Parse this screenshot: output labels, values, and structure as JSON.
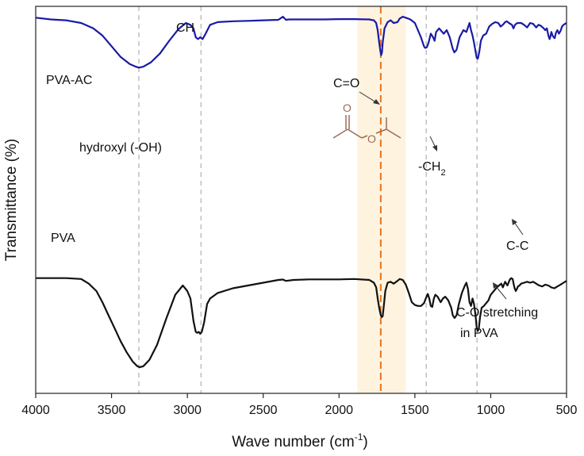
{
  "chart_data": {
    "type": "line",
    "title": "",
    "xlabel": "Wave number (cm",
    "xlabel_sup": "-1",
    "xlabel_end": ")",
    "ylabel": "Transmittance (%)",
    "xlim": [
      4000,
      500
    ],
    "x_ticks": [
      4000,
      3500,
      3000,
      2500,
      2000,
      1500,
      1000,
      500
    ],
    "y_ticks": [],
    "reference_lines": [
      3320,
      2910,
      1425,
      1090
    ],
    "highlight_band": [
      1880,
      1560
    ],
    "carbonyl_line": 1725,
    "colors": {
      "pva_ac": "#1a1aa6",
      "pva": "#111111",
      "carbonyl": "#e8731a",
      "band": "#fdf3df",
      "grid": "#bbbbbb",
      "molecule": "#9c6b5a"
    },
    "series": [
      {
        "name": "PVA-AC",
        "label": "PVA-AC",
        "x": [
          4000,
          3900,
          3800,
          3700,
          3620,
          3560,
          3500,
          3440,
          3380,
          3340,
          3320,
          3290,
          3240,
          3180,
          3120,
          3060,
          3010,
          2980,
          2960,
          2945,
          2930,
          2915,
          2900,
          2880,
          2850,
          2800,
          2700,
          2600,
          2500,
          2400,
          2370,
          2350,
          2330,
          2250,
          2100,
          2000,
          1900,
          1800,
          1790,
          1770,
          1755,
          1745,
          1735,
          1727,
          1722,
          1717,
          1712,
          1700,
          1680,
          1660,
          1640,
          1615,
          1600,
          1580,
          1560,
          1530,
          1500,
          1480,
          1460,
          1440,
          1432,
          1420,
          1410,
          1395,
          1380,
          1370,
          1360,
          1340,
          1310,
          1290,
          1270,
          1250,
          1240,
          1225,
          1205,
          1180,
          1160,
          1140,
          1130,
          1120,
          1110,
          1100,
          1092,
          1085,
          1075,
          1065,
          1050,
          1030,
          1010,
          990,
          970,
          950,
          935,
          920,
          905,
          895,
          880,
          860,
          850,
          840,
          825,
          800,
          780,
          760,
          740,
          720,
          700,
          685,
          670,
          650,
          640,
          630,
          620,
          612,
          606,
          600,
          592,
          585,
          578,
          570,
          560,
          550,
          540,
          530,
          520,
          510,
          500
        ],
        "y": [
          99.0,
          98.0,
          97.5,
          96.0,
          93.0,
          89.0,
          83.0,
          77.0,
          73.0,
          71.5,
          71.0,
          71.5,
          74.0,
          79.0,
          86.0,
          92.5,
          96.0,
          95.0,
          93.0,
          88.0,
          87.0,
          88.0,
          87.0,
          90.0,
          95.0,
          96.5,
          97.0,
          97.2,
          97.5,
          97.8,
          99.5,
          97.8,
          98.0,
          98.0,
          98.0,
          98.2,
          98.2,
          98.0,
          97.8,
          97.5,
          96.0,
          92.0,
          85.0,
          80.0,
          78.0,
          79.5,
          85.0,
          93.0,
          96.5,
          97.5,
          96.0,
          96.5,
          98.5,
          99.5,
          99.0,
          98.0,
          96.0,
          92.0,
          88.0,
          83.0,
          82.0,
          82.5,
          85.0,
          90.0,
          88.0,
          86.0,
          91.0,
          93.0,
          90.0,
          92.0,
          88.0,
          81.5,
          79.5,
          81.0,
          88.0,
          92.0,
          91.0,
          96.0,
          92.0,
          89.0,
          85.0,
          80.0,
          76.5,
          76.0,
          80.0,
          86.0,
          89.0,
          90.0,
          94.0,
          95.5,
          96.5,
          96.0,
          94.0,
          95.0,
          96.5,
          97.0,
          96.0,
          95.0,
          93.0,
          95.0,
          96.0,
          96.0,
          95.0,
          93.5,
          96.0,
          95.5,
          93.5,
          95.0,
          94.5,
          93.0,
          92.0,
          93.0,
          89.0,
          87.0,
          88.5,
          91.0,
          89.0,
          88.0,
          87.5,
          90.5,
          92.0,
          90.0,
          91.5,
          94.0,
          95.0,
          95.5,
          96.0
        ]
      },
      {
        "name": "PVA",
        "label": "PVA",
        "x": [
          4000,
          3900,
          3800,
          3700,
          3650,
          3600,
          3560,
          3520,
          3480,
          3440,
          3400,
          3360,
          3330,
          3315,
          3290,
          3250,
          3200,
          3140,
          3080,
          3030,
          3000,
          2980,
          2960,
          2945,
          2935,
          2925,
          2915,
          2905,
          2890,
          2870,
          2850,
          2800,
          2700,
          2600,
          2500,
          2400,
          2370,
          2350,
          2300,
          2200,
          2100,
          2000,
          1900,
          1800,
          1790,
          1770,
          1755,
          1745,
          1735,
          1725,
          1718,
          1712,
          1705,
          1695,
          1680,
          1660,
          1640,
          1615,
          1600,
          1580,
          1560,
          1540,
          1520,
          1500,
          1480,
          1460,
          1440,
          1428,
          1415,
          1405,
          1395,
          1385,
          1375,
          1365,
          1350,
          1330,
          1315,
          1300,
          1280,
          1260,
          1250,
          1238,
          1225,
          1210,
          1190,
          1170,
          1160,
          1150,
          1140,
          1130,
          1120,
          1110,
          1100,
          1092,
          1085,
          1078,
          1070,
          1060,
          1045,
          1030,
          1015,
          1000,
          980,
          960,
          945,
          930,
          920,
          905,
          890,
          875,
          865,
          855,
          848,
          842,
          835,
          828,
          820,
          810,
          800,
          780,
          760,
          740,
          720,
          700,
          690,
          680,
          660,
          640,
          620,
          600,
          580,
          560,
          540,
          520,
          500
        ],
        "y": [
          51.0,
          51.0,
          51.0,
          50.5,
          48.0,
          44.0,
          38.0,
          31.0,
          24.0,
          17.0,
          11.0,
          6.0,
          3.5,
          3.0,
          3.5,
          7.0,
          15.0,
          29.0,
          42.0,
          47.0,
          44.0,
          40.0,
          28.0,
          22.0,
          21.5,
          22.0,
          21.0,
          22.0,
          27.0,
          37.0,
          40.0,
          43.0,
          45.5,
          47.0,
          48.5,
          50.0,
          50.2,
          49.5,
          50.0,
          50.3,
          50.3,
          50.3,
          50.5,
          50.0,
          49.5,
          48.5,
          46.0,
          40.0,
          35.0,
          31.0,
          30.0,
          30.5,
          36.0,
          44.0,
          48.5,
          49.0,
          48.0,
          49.5,
          50.5,
          50.0,
          47.5,
          43.0,
          38.0,
          36.5,
          36.0,
          36.0,
          37.5,
          40.0,
          42.5,
          40.0,
          36.0,
          35.5,
          40.0,
          42.0,
          41.0,
          38.0,
          40.0,
          41.0,
          39.0,
          35.0,
          31.0,
          29.5,
          31.0,
          37.0,
          43.0,
          47.0,
          48.5,
          45.0,
          38.0,
          36.0,
          40.0,
          37.0,
          31.0,
          24.0,
          22.5,
          24.0,
          30.0,
          35.0,
          36.0,
          37.5,
          39.0,
          42.0,
          44.0,
          46.0,
          47.0,
          48.0,
          46.0,
          49.0,
          47.0,
          50.0,
          51.0,
          50.5,
          47.5,
          45.5,
          44.0,
          45.0,
          46.5,
          47.0,
          48.0,
          48.5,
          49.0,
          48.5,
          49.0,
          48.0,
          47.5,
          47.0,
          46.5,
          47.5,
          47.0,
          46.0,
          45.5,
          46.5,
          47.5,
          48.5,
          49.5
        ]
      }
    ],
    "annotations": {
      "ch": "CH",
      "hydroxyl": "hydroxyl (-OH)",
      "carbonyl": "C=O",
      "ch2_prefix": "-CH",
      "ch2_sub": "2",
      "cc": "C-C",
      "co_line1": "C-O stretching",
      "co_line2": "in PVA",
      "molecule_o_top": "O",
      "molecule_o_ester": "O"
    }
  }
}
